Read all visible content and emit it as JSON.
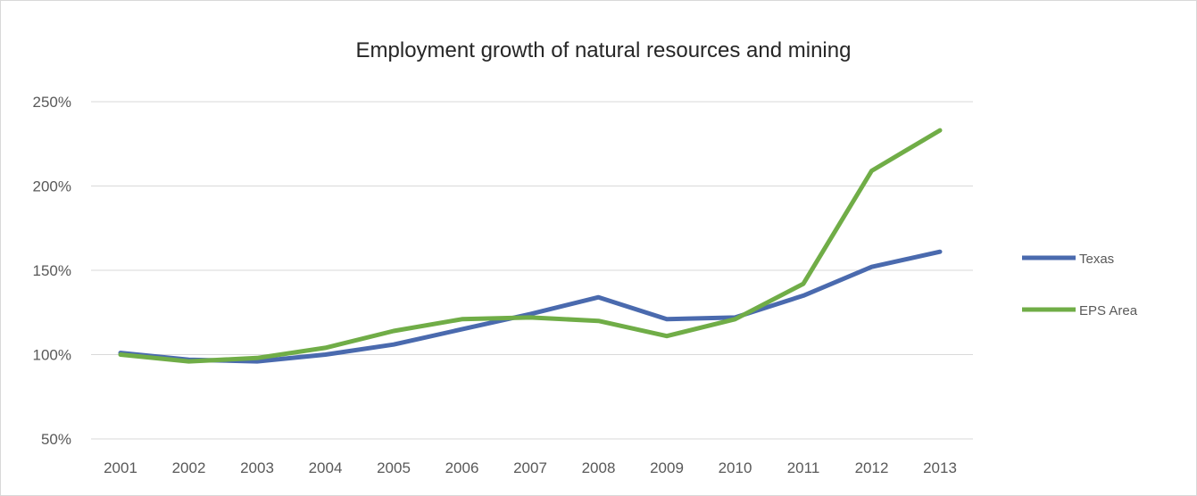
{
  "chart_data": {
    "type": "line",
    "title": "Employment growth of natural resources and mining",
    "xlabel": "",
    "ylabel": "",
    "categories": [
      "2001",
      "2002",
      "2003",
      "2004",
      "2005",
      "2006",
      "2007",
      "2008",
      "2009",
      "2010",
      "2011",
      "2012",
      "2013"
    ],
    "ylim": [
      50,
      250
    ],
    "yticks": [
      50,
      100,
      150,
      200,
      250
    ],
    "ytick_labels": [
      "50%",
      "100%",
      "150%",
      "200%",
      "250%"
    ],
    "grid": true,
    "legend_position": "right",
    "series": [
      {
        "name": "Texas",
        "color": "#4a6aae",
        "values": [
          101,
          97,
          96,
          100,
          106,
          115,
          124,
          134,
          121,
          122,
          135,
          152,
          161
        ]
      },
      {
        "name": "EPS Area",
        "color": "#70ad47",
        "values": [
          100,
          96,
          98,
          104,
          114,
          121,
          122,
          120,
          111,
          121,
          142,
          209,
          233
        ]
      }
    ]
  }
}
